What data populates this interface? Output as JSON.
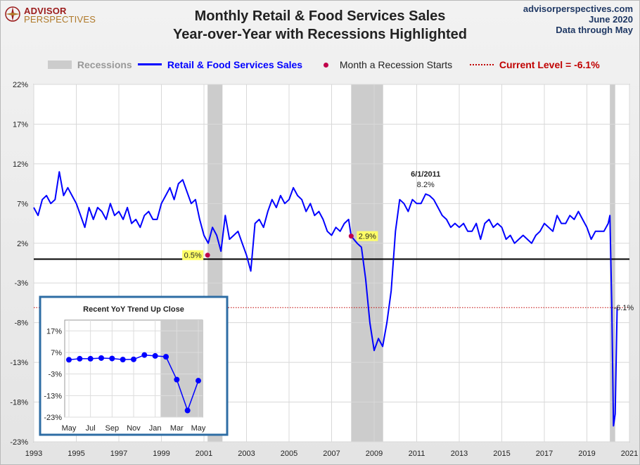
{
  "logo": {
    "line1": "ADVISOR",
    "line2": "PERSPECTIVES"
  },
  "header": {
    "title_line1": "Monthly Retail & Food Services Sales",
    "title_line2": "Year-over-Year  with Recessions Highlighted"
  },
  "source": {
    "site": "advisorperspectives.com",
    "date": "June 2020",
    "note": "Data through May"
  },
  "legend": {
    "recessions": "Recessions",
    "series": "Retail & Food Services Sales",
    "recession_start": "Month a Recession Starts",
    "current": "Current Level = -6.1%"
  },
  "colors": {
    "series": "#0000ff",
    "recession": "#cccccc",
    "current": "#c00000",
    "marker": "#c0004a",
    "highlight": "#ffff66"
  },
  "chart_data": [
    {
      "type": "line",
      "title": "Monthly Retail & Food Services Sales Year-over-Year with Recessions Highlighted",
      "xlabel": "",
      "ylabel": "",
      "xlim": [
        1993,
        2021
      ],
      "ylim": [
        -23,
        22
      ],
      "x_ticks": [
        "1993",
        "1995",
        "1997",
        "1999",
        "2001",
        "2003",
        "2005",
        "2007",
        "2009",
        "2011",
        "2013",
        "2015",
        "2017",
        "2019",
        "2021"
      ],
      "x_tick_values": [
        1993,
        1995,
        1997,
        1999,
        2001,
        2003,
        2005,
        2007,
        2009,
        2011,
        2013,
        2015,
        2017,
        2019,
        2021
      ],
      "y_ticks": [
        "22%",
        "17%",
        "12%",
        "7%",
        "2%",
        "-3%",
        "-8%",
        "-13%",
        "-18%",
        "-23%"
      ],
      "y_tick_values": [
        22,
        17,
        12,
        7,
        2,
        -3,
        -8,
        -13,
        -18,
        -23
      ],
      "grid": true,
      "zero_line": 0,
      "current_level": -6.1,
      "recessions": [
        [
          2001.17,
          2001.87
        ],
        [
          2007.92,
          2009.42
        ],
        [
          2020.08,
          2020.33
        ]
      ],
      "series": [
        {
          "name": "Retail & Food Services Sales",
          "x": [
            1993.0,
            1993.2,
            1993.4,
            1993.6,
            1993.8,
            1994.0,
            1994.2,
            1994.4,
            1994.6,
            1994.8,
            1995.0,
            1995.2,
            1995.4,
            1995.6,
            1995.8,
            1996.0,
            1996.2,
            1996.4,
            1996.6,
            1996.8,
            1997.0,
            1997.2,
            1997.4,
            1997.6,
            1997.8,
            1998.0,
            1998.2,
            1998.4,
            1998.6,
            1998.8,
            1999.0,
            1999.2,
            1999.4,
            1999.6,
            1999.8,
            2000.0,
            2000.2,
            2000.4,
            2000.6,
            2000.8,
            2001.0,
            2001.2,
            2001.4,
            2001.6,
            2001.8,
            2002.0,
            2002.2,
            2002.4,
            2002.6,
            2002.8,
            2003.0,
            2003.2,
            2003.4,
            2003.6,
            2003.8,
            2004.0,
            2004.2,
            2004.4,
            2004.6,
            2004.8,
            2005.0,
            2005.2,
            2005.4,
            2005.6,
            2005.8,
            2006.0,
            2006.2,
            2006.4,
            2006.6,
            2006.8,
            2007.0,
            2007.2,
            2007.4,
            2007.6,
            2007.8,
            2007.92,
            2008.2,
            2008.4,
            2008.6,
            2008.8,
            2009.0,
            2009.2,
            2009.4,
            2009.6,
            2009.8,
            2010.0,
            2010.2,
            2010.4,
            2010.6,
            2010.8,
            2011.0,
            2011.2,
            2011.42,
            2011.6,
            2011.8,
            2012.0,
            2012.2,
            2012.4,
            2012.6,
            2012.8,
            2013.0,
            2013.2,
            2013.4,
            2013.6,
            2013.8,
            2014.0,
            2014.2,
            2014.4,
            2014.6,
            2014.8,
            2015.0,
            2015.2,
            2015.4,
            2015.6,
            2015.8,
            2016.0,
            2016.2,
            2016.4,
            2016.6,
            2016.8,
            2017.0,
            2017.2,
            2017.4,
            2017.6,
            2017.8,
            2018.0,
            2018.2,
            2018.4,
            2018.6,
            2018.8,
            2019.0,
            2019.2,
            2019.4,
            2019.6,
            2019.8,
            2020.0,
            2020.08,
            2020.17,
            2020.25,
            2020.33,
            2020.42
          ],
          "values": [
            6.5,
            5.5,
            7.5,
            8.0,
            7.0,
            7.5,
            11.0,
            8.0,
            9.0,
            8.0,
            7.0,
            5.5,
            4.0,
            6.5,
            5.0,
            6.5,
            6.0,
            5.0,
            7.0,
            5.5,
            6.0,
            5.0,
            6.5,
            4.5,
            5.0,
            4.0,
            5.5,
            6.0,
            5.0,
            5.0,
            7.0,
            8.0,
            9.0,
            7.5,
            9.5,
            10.0,
            8.5,
            7.0,
            7.5,
            5.0,
            3.0,
            2.0,
            4.0,
            3.0,
            1.0,
            5.5,
            2.5,
            3.0,
            3.5,
            2.0,
            0.5,
            -1.5,
            4.5,
            5.0,
            4.0,
            6.0,
            7.5,
            6.5,
            8.0,
            7.0,
            7.5,
            9.0,
            8.0,
            7.5,
            6.0,
            7.0,
            5.5,
            6.0,
            5.0,
            3.5,
            3.0,
            4.0,
            3.5,
            4.5,
            5.0,
            2.9,
            2.0,
            1.5,
            -2.5,
            -8.0,
            -11.5,
            -10.0,
            -11.0,
            -8.0,
            -4.0,
            3.5,
            7.5,
            7.0,
            6.0,
            7.5,
            7.0,
            7.0,
            8.2,
            8.0,
            7.5,
            6.5,
            5.5,
            5.0,
            4.0,
            4.5,
            4.0,
            4.5,
            3.5,
            3.5,
            4.5,
            2.5,
            4.5,
            5.0,
            4.0,
            4.5,
            4.0,
            2.5,
            3.0,
            2.0,
            2.5,
            3.0,
            2.5,
            2.0,
            3.0,
            3.5,
            4.5,
            4.0,
            3.5,
            5.5,
            4.5,
            4.5,
            5.5,
            5.0,
            6.0,
            5.0,
            4.0,
            2.5,
            3.5,
            3.5,
            3.5,
            4.5,
            5.5,
            -6.0,
            -21.0,
            -19.5,
            -6.1
          ]
        }
      ],
      "annotations": [
        {
          "label": "0.5%",
          "x": 2001.17,
          "y": 0.5,
          "style": "highlight"
        },
        {
          "label": "2.9%",
          "x": 2007.92,
          "y": 2.9,
          "style": "highlight"
        },
        {
          "label": "6/1/2011",
          "x": 2011.42,
          "y": 8.2,
          "style": "peak"
        },
        {
          "label": "8.2%",
          "x": 2011.42,
          "y": 8.2,
          "style": "peak-value"
        },
        {
          "label": "-6.1%",
          "x": 2020.42,
          "y": -6.1,
          "style": "current"
        }
      ],
      "recession_start_markers": [
        {
          "x": 2001.17,
          "y": 0.5
        },
        {
          "x": 2007.92,
          "y": 2.9
        }
      ]
    },
    {
      "type": "line",
      "title": "Recent  YoY Trend Up Close",
      "categories": [
        "May",
        "Jun",
        "Jul",
        "Aug",
        "Sep",
        "Oct",
        "Nov",
        "Dec",
        "Jan",
        "Feb",
        "Mar",
        "Apr",
        "May"
      ],
      "x_ticks": [
        "May",
        "Jul",
        "Sep",
        "Nov",
        "Jan",
        "Mar",
        "May"
      ],
      "y_ticks": [
        "17%",
        "7%",
        "-3%",
        "-13%",
        "-23%"
      ],
      "y_tick_values": [
        17,
        7,
        -3,
        -13,
        -23
      ],
      "ylim": [
        -23,
        22
      ],
      "recession_from_index": 9,
      "series": [
        {
          "name": "Retail & Food Services Sales",
          "values": [
            3.6,
            4.1,
            4.1,
            4.4,
            4.2,
            3.7,
            3.8,
            5.8,
            5.4,
            5.0,
            -5.6,
            -19.9,
            -6.1
          ]
        }
      ]
    }
  ]
}
